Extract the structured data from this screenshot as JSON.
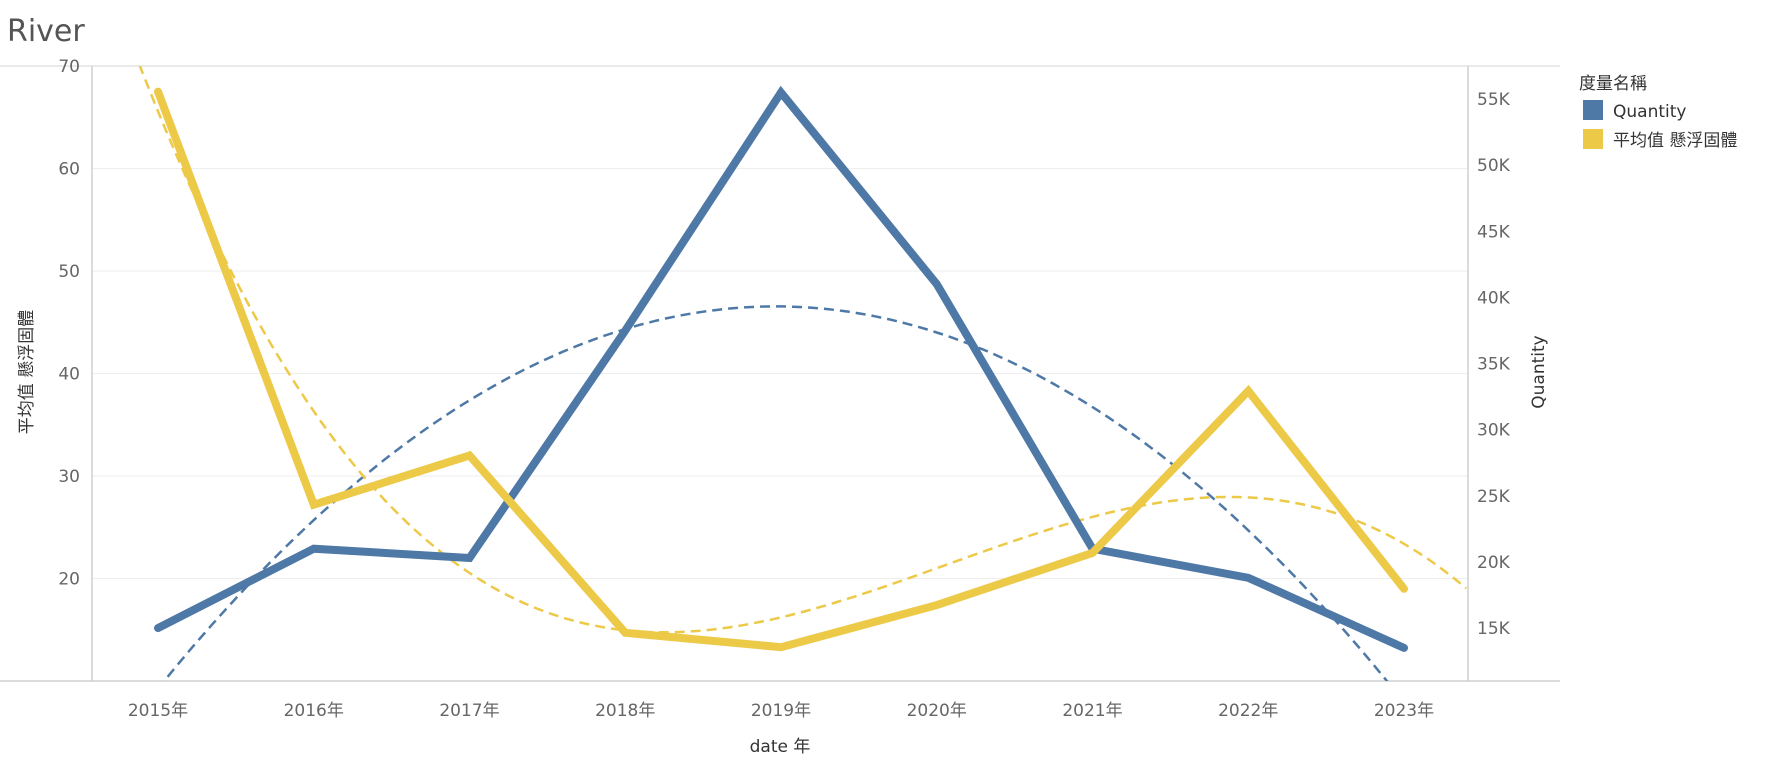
{
  "chart_data": {
    "type": "line",
    "title": "River",
    "xlabel": "date 年",
    "categories": [
      "2015年",
      "2016年",
      "2017年",
      "2018年",
      "2019年",
      "2020年",
      "2021年",
      "2022年",
      "2023年"
    ],
    "left_axis": {
      "label": "平均值 懸浮固體",
      "range": [
        10,
        70
      ],
      "ticks": [
        "20",
        "30",
        "40",
        "50",
        "60",
        "70"
      ],
      "tick_values": [
        20,
        30,
        40,
        50,
        60,
        70
      ]
    },
    "right_axis": {
      "label": "Quantity",
      "range": [
        11000,
        57500
      ],
      "ticks": [
        "15K",
        "20K",
        "25K",
        "30K",
        "35K",
        "40K",
        "45K",
        "50K",
        "55K"
      ],
      "tick_values": [
        15000,
        20000,
        25000,
        30000,
        35000,
        40000,
        45000,
        50000,
        55000
      ]
    },
    "series": [
      {
        "name": "Quantity",
        "axis": "right",
        "color": "#4e79a7",
        "values": [
          15000,
          21000,
          20300,
          37500,
          55500,
          41000,
          21000,
          18800,
          13500
        ],
        "trend": "polynomial",
        "trend_style": "dashed"
      },
      {
        "name": "平均值 懸浮固體",
        "axis": "left",
        "color": "#edc948",
        "values": [
          67.5,
          27.2,
          32.0,
          14.7,
          13.3,
          17.4,
          22.5,
          38.3,
          19.0
        ],
        "trend": "polynomial",
        "trend_style": "dashed"
      }
    ],
    "legend": {
      "title": "度量名稱",
      "position": "right",
      "items": [
        {
          "label": "Quantity",
          "color": "#4e79a7"
        },
        {
          "label": "平均值 懸浮固體",
          "color": "#edc948"
        }
      ]
    },
    "grid": "horizontal"
  }
}
